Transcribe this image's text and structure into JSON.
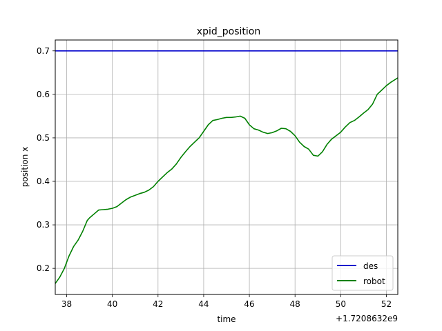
{
  "chart_data": {
    "type": "line",
    "title": "xpid_position",
    "xlabel": "time",
    "ylabel": "position x",
    "x_offset_label": "+1.7208632e9",
    "xlim": [
      37.5,
      52.5
    ],
    "ylim": [
      0.14,
      0.725
    ],
    "xticks": [
      38,
      40,
      42,
      44,
      46,
      48,
      50,
      52
    ],
    "yticks": [
      0.2,
      0.3,
      0.4,
      0.5,
      0.6,
      0.7
    ],
    "xtick_labels": [
      "38",
      "40",
      "42",
      "44",
      "46",
      "48",
      "50",
      "52"
    ],
    "ytick_labels": [
      "0.2",
      "0.3",
      "0.4",
      "0.5",
      "0.6",
      "0.7"
    ],
    "grid": true,
    "legend_position": "lower right",
    "series": [
      {
        "name": "des",
        "color": "#0000cc",
        "x": [
          37.5,
          52.5
        ],
        "y": [
          0.7,
          0.7
        ]
      },
      {
        "name": "robot",
        "color": "#008000",
        "x": [
          37.5,
          37.7,
          37.9,
          38.1,
          38.3,
          38.5,
          38.7,
          38.9,
          39.0,
          39.2,
          39.4,
          39.6,
          39.8,
          40.0,
          40.2,
          40.4,
          40.6,
          40.8,
          41.0,
          41.2,
          41.4,
          41.6,
          41.8,
          42.0,
          42.2,
          42.4,
          42.6,
          42.8,
          43.0,
          43.2,
          43.4,
          43.6,
          43.8,
          44.0,
          44.2,
          44.4,
          44.6,
          44.8,
          45.0,
          45.2,
          45.4,
          45.6,
          45.8,
          46.0,
          46.2,
          46.4,
          46.6,
          46.8,
          47.0,
          47.2,
          47.4,
          47.6,
          47.8,
          48.0,
          48.2,
          48.4,
          48.6,
          48.8,
          49.0,
          49.2,
          49.4,
          49.6,
          49.8,
          50.0,
          50.2,
          50.4,
          50.6,
          50.8,
          51.0,
          51.2,
          51.4,
          51.6,
          51.8,
          52.0,
          52.2,
          52.5
        ],
        "y": [
          0.165,
          0.18,
          0.2,
          0.228,
          0.25,
          0.265,
          0.285,
          0.31,
          0.316,
          0.325,
          0.334,
          0.335,
          0.336,
          0.338,
          0.342,
          0.35,
          0.358,
          0.364,
          0.368,
          0.372,
          0.375,
          0.38,
          0.388,
          0.4,
          0.41,
          0.42,
          0.428,
          0.44,
          0.455,
          0.468,
          0.48,
          0.49,
          0.5,
          0.515,
          0.53,
          0.54,
          0.542,
          0.545,
          0.547,
          0.547,
          0.548,
          0.55,
          0.545,
          0.53,
          0.521,
          0.518,
          0.513,
          0.51,
          0.512,
          0.516,
          0.522,
          0.521,
          0.515,
          0.505,
          0.49,
          0.48,
          0.474,
          0.46,
          0.458,
          0.468,
          0.485,
          0.497,
          0.505,
          0.513,
          0.525,
          0.535,
          0.54,
          0.548,
          0.557,
          0.565,
          0.578,
          0.6,
          0.61,
          0.62,
          0.628,
          0.638
        ]
      }
    ]
  }
}
